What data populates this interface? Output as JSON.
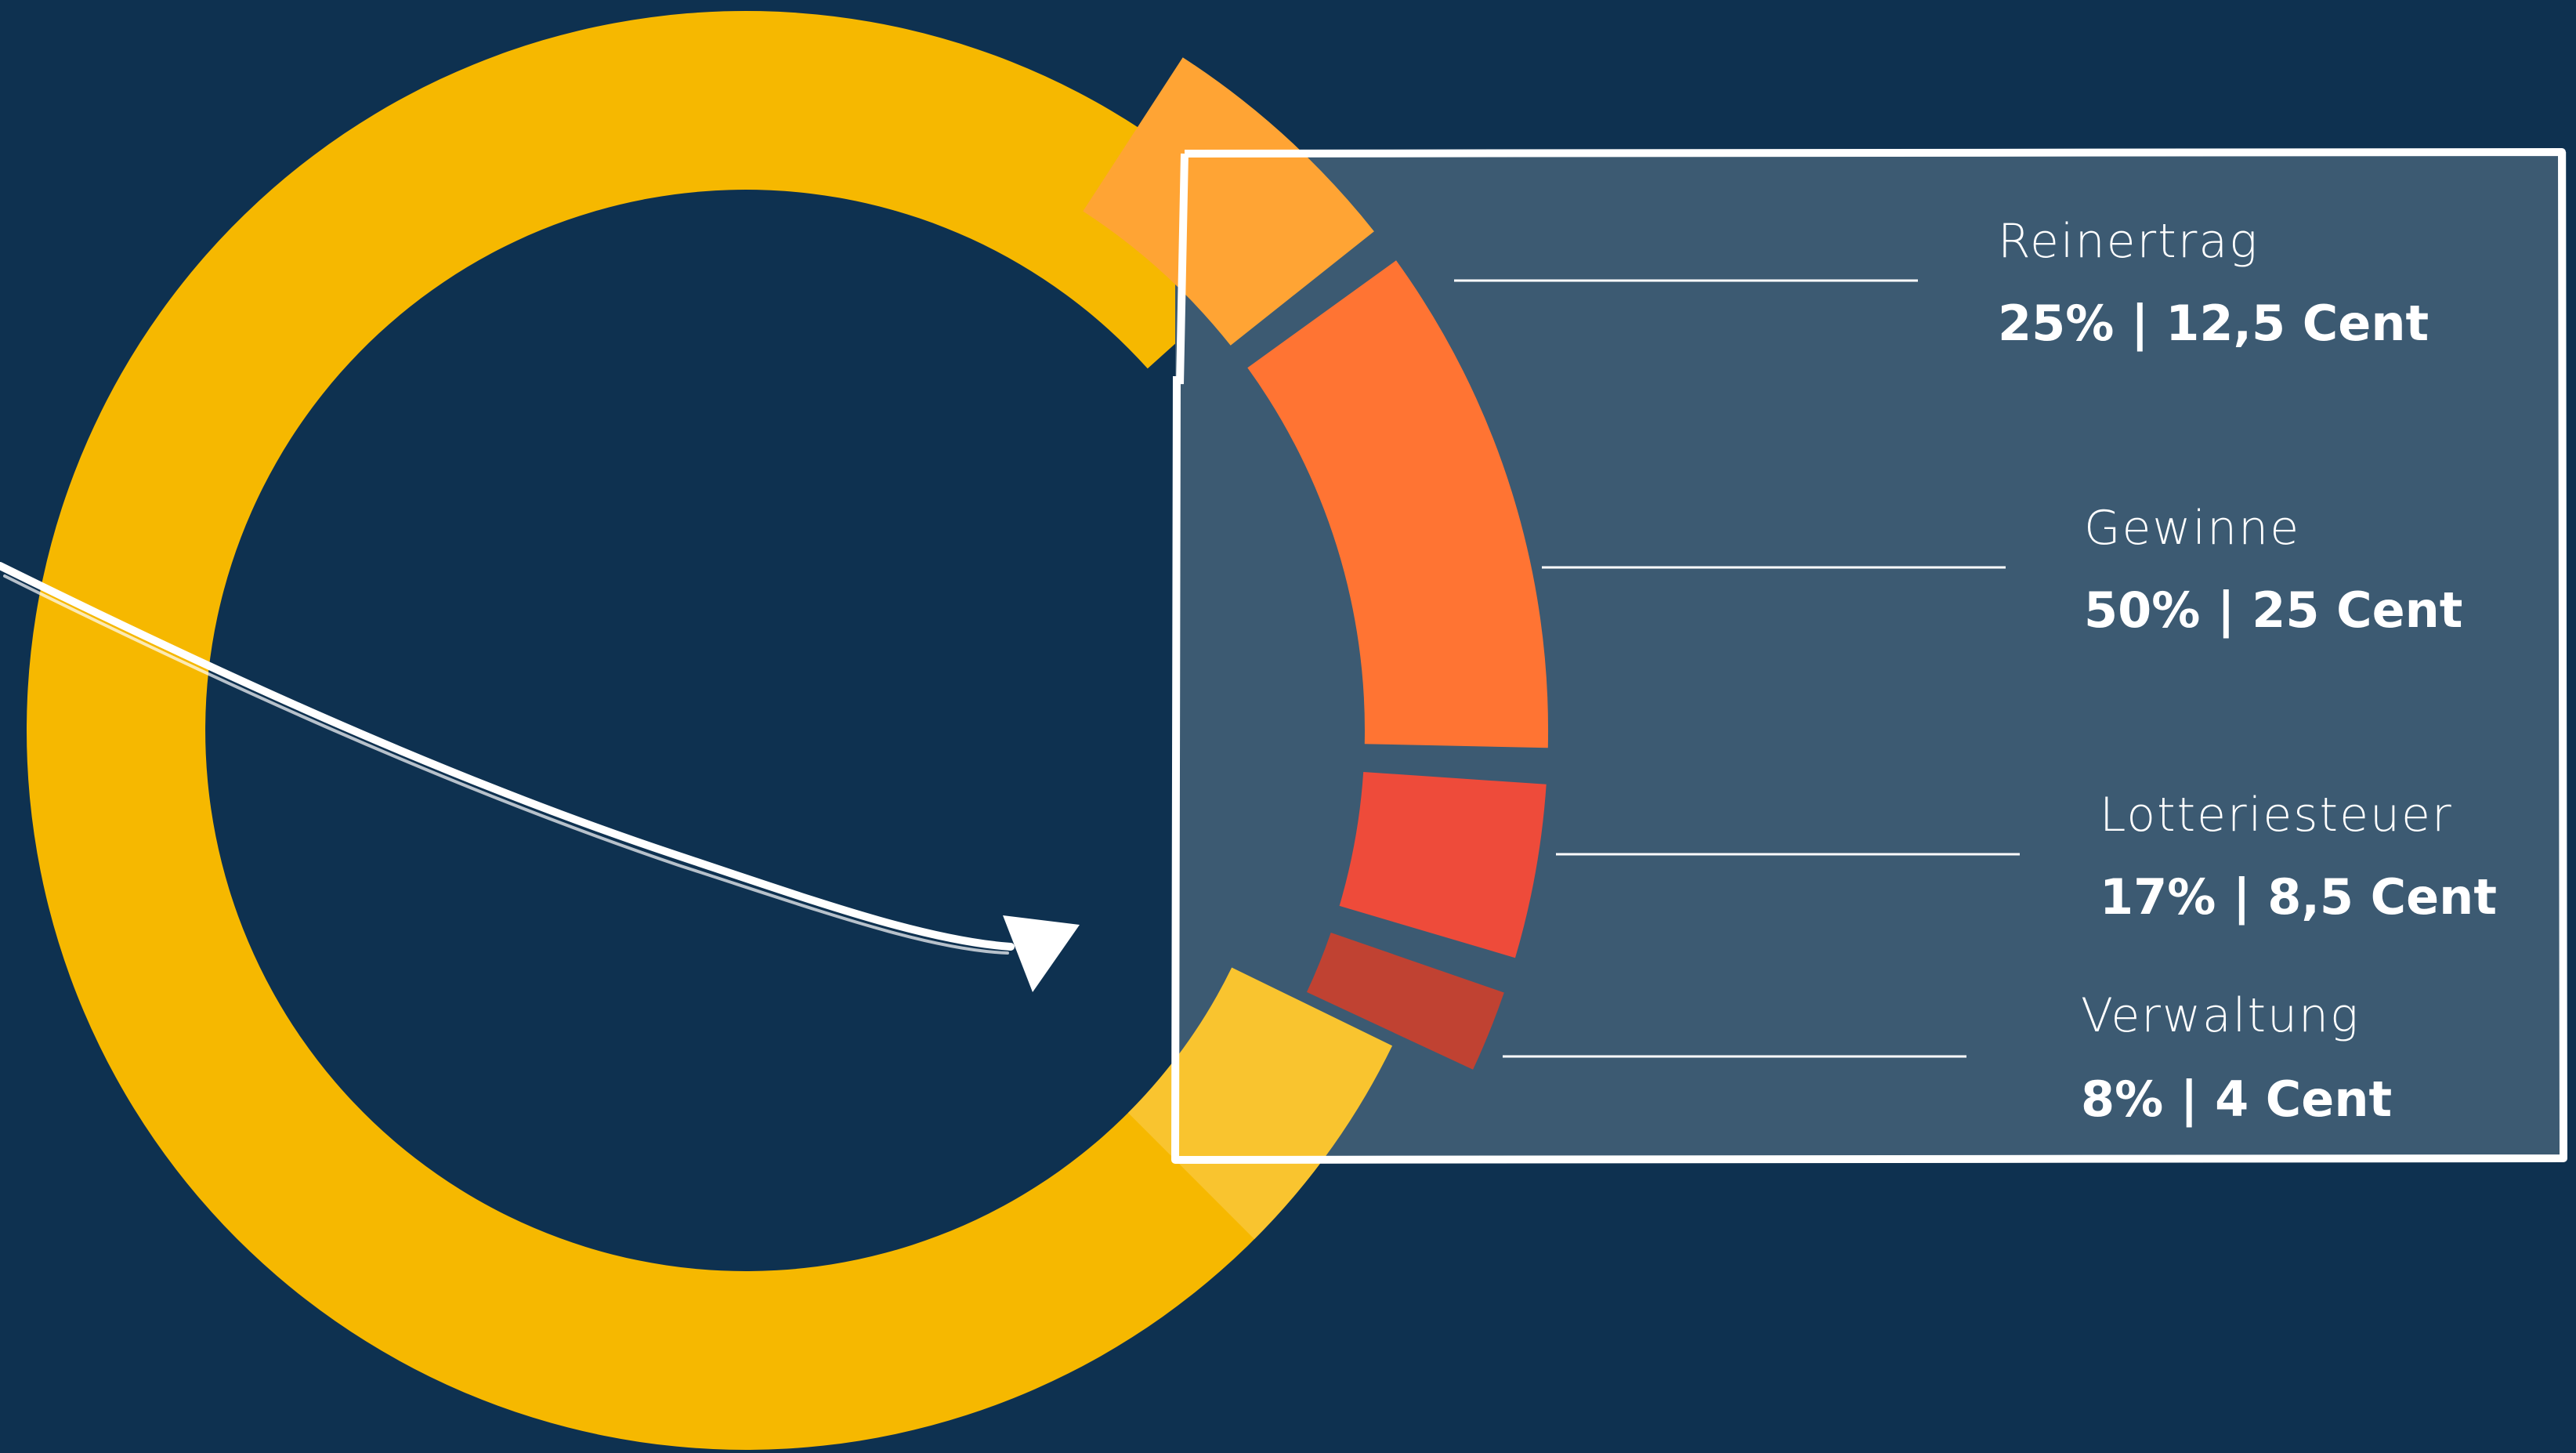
{
  "colors": {
    "background": "#0e3150",
    "panel": "#3c5a72",
    "ring": "#f6b800",
    "frame": "#ffffff"
  },
  "chart_data": {
    "type": "pie",
    "title": "",
    "slices": [
      {
        "label": "Reinertrag",
        "percent": 25,
        "value_text": "25% | 12,5 Cent",
        "color": "#ffa434"
      },
      {
        "label": "Gewinne",
        "percent": 50,
        "value_text": "50% | 25 Cent",
        "color": "#ff7433"
      },
      {
        "label": "Lotteriesteuer",
        "percent": 17,
        "value_text": "17% | 8,5 Cent",
        "color": "#ee4b3a"
      },
      {
        "label": "Verwaltung",
        "percent": 8,
        "value_text": "8% | 4 Cent",
        "color": "#c04232"
      }
    ],
    "legend_position": "right"
  }
}
